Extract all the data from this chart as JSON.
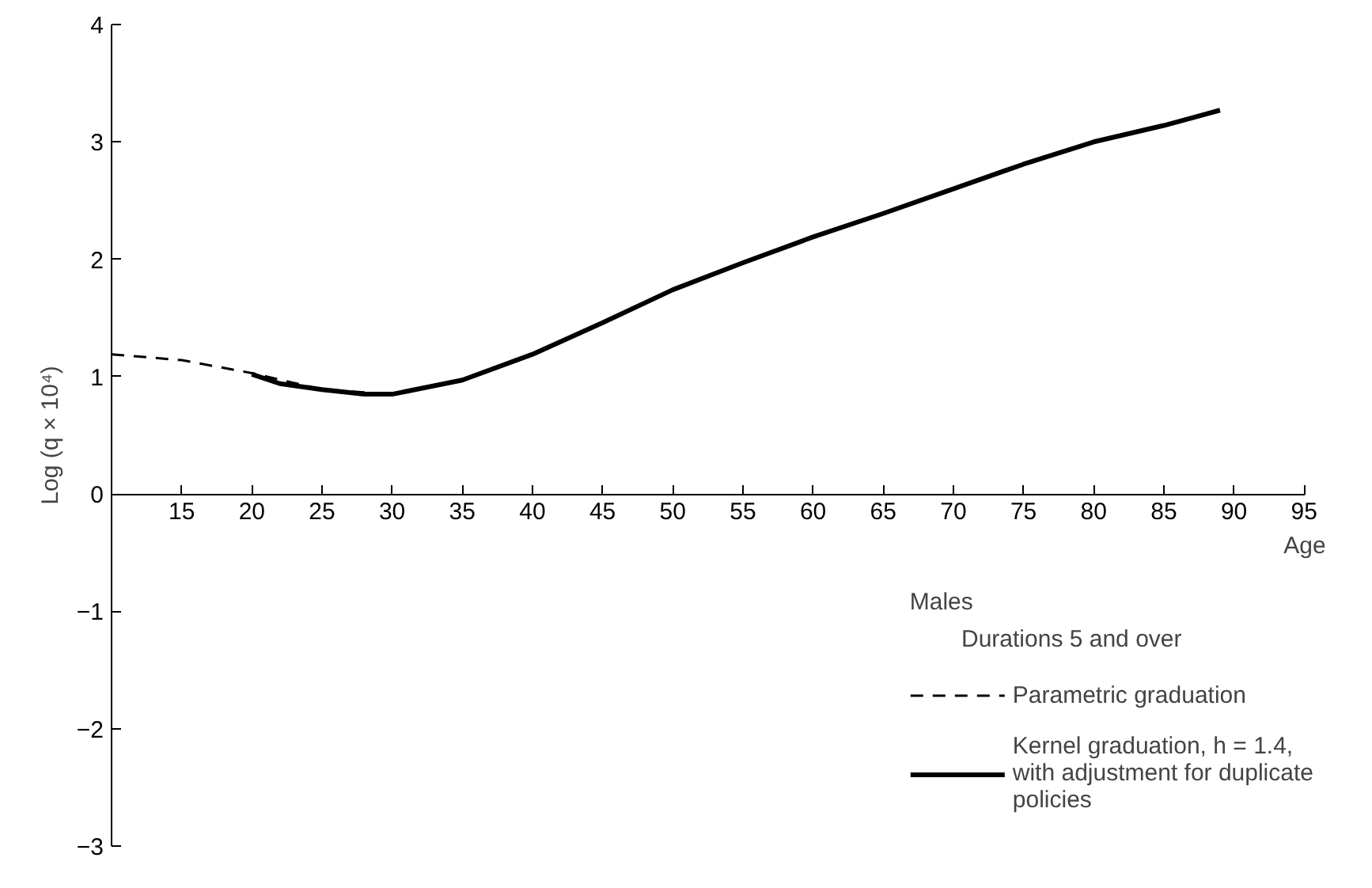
{
  "chart_data": {
    "type": "line",
    "xlabel": "Age",
    "ylabel": "Log (q × 10⁴)",
    "legend_title": "Males",
    "annotations": [
      "Durations 5 and over"
    ],
    "xlim": [
      10,
      95
    ],
    "ylim": [
      -3,
      4
    ],
    "xticks": [
      15,
      20,
      25,
      30,
      35,
      40,
      45,
      50,
      55,
      60,
      65,
      70,
      75,
      80,
      85,
      90,
      95
    ],
    "yticks": [
      -3,
      -2,
      -1,
      0,
      1,
      2,
      3,
      4
    ],
    "grid": false,
    "legend": "bottom right",
    "marker": "none",
    "series": [
      {
        "name": "Parametric graduation",
        "color": "#000000",
        "line_style": "dashed",
        "x": [
          10,
          15,
          20,
          25,
          30,
          35,
          40,
          45,
          50,
          55,
          60,
          65,
          70,
          75,
          80,
          85,
          89
        ],
        "values": [
          1.19,
          1.14,
          1.03,
          0.89,
          0.85,
          0.97,
          1.19,
          1.46,
          1.74,
          1.97,
          2.19,
          2.39,
          2.6,
          2.81,
          3.0,
          3.14,
          3.27
        ]
      },
      {
        "name": "Kernel graduation, h = 1.4, with adjustment for duplicate policies",
        "color": "#000000",
        "line_style": "solid",
        "x": [
          20,
          22,
          25,
          28,
          30,
          35,
          40,
          45,
          50,
          55,
          60,
          65,
          70,
          75,
          80,
          85,
          89
        ],
        "values": [
          1.02,
          0.94,
          0.89,
          0.85,
          0.85,
          0.97,
          1.19,
          1.46,
          1.74,
          1.97,
          2.19,
          2.39,
          2.6,
          2.81,
          3.0,
          3.14,
          3.27
        ]
      }
    ]
  }
}
